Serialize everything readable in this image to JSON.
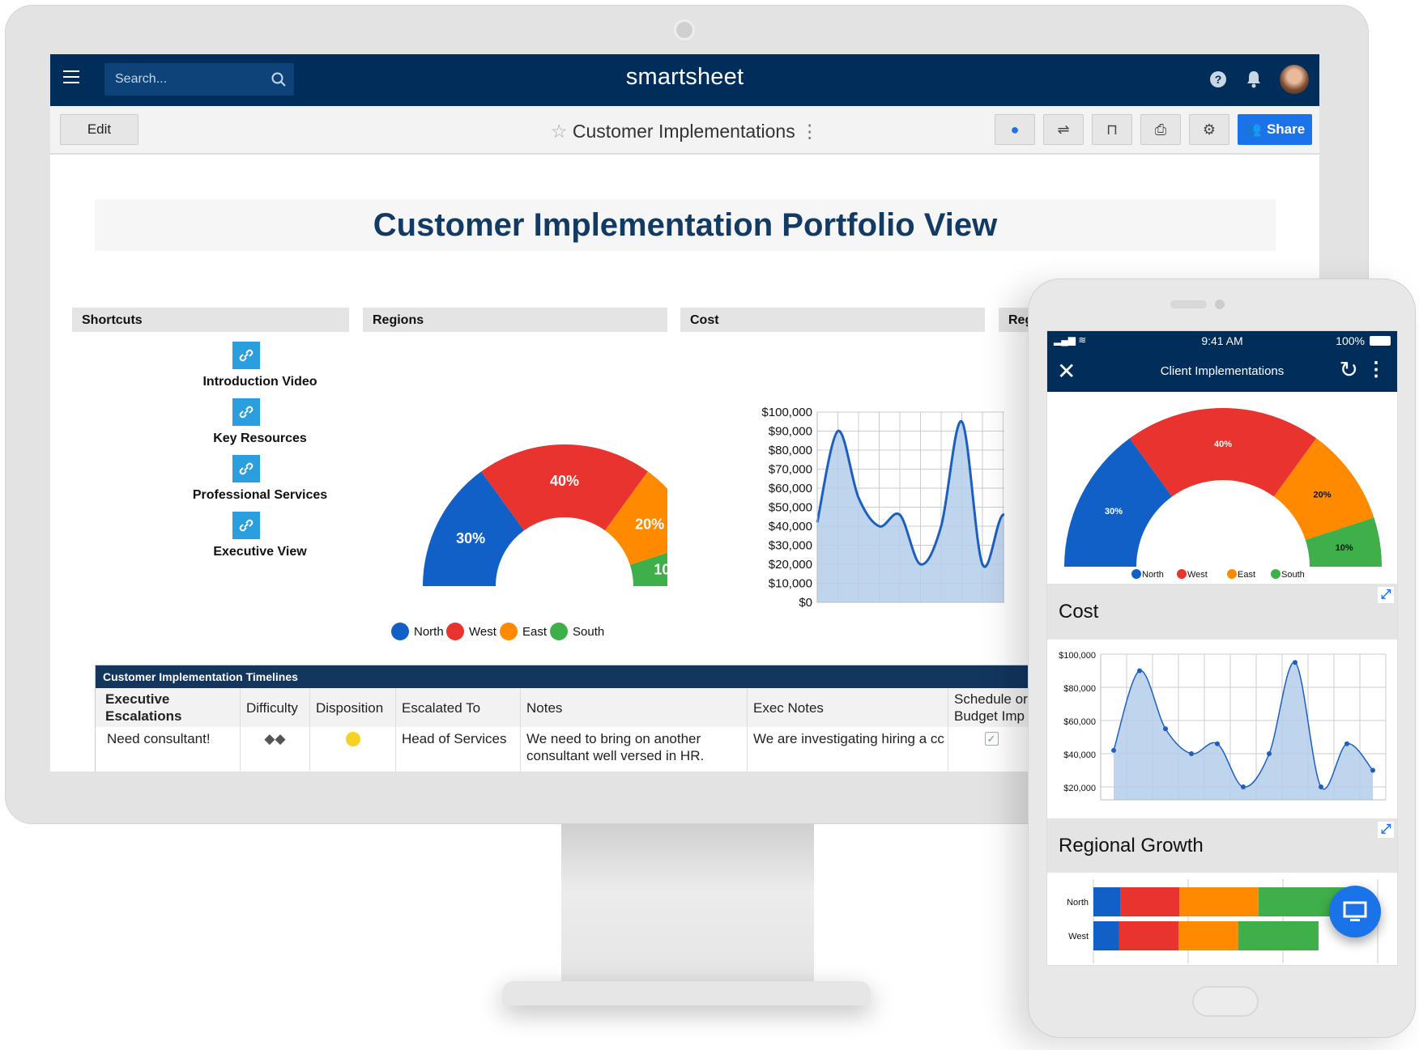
{
  "app": {
    "logo": "smartsheet",
    "search_placeholder": "Search...",
    "sheet_title": "Customer Implementations",
    "edit_label": "Edit",
    "share_label": "Share",
    "toolbar_icons": [
      "globe-icon",
      "activity-icon",
      "presentation-icon",
      "print-icon",
      "settings-user-icon"
    ]
  },
  "dashboard": {
    "title": "Customer Implementation Portfolio View",
    "widgets": {
      "shortcuts": "Shortcuts",
      "regions": "Regions",
      "cost": "Cost",
      "regional_growth_truncated": "Reg"
    },
    "shortcuts": [
      "Introduction Video",
      "Key Resources",
      "Professional Services",
      "Executive View"
    ]
  },
  "colors": {
    "navy": "#002d5a",
    "accent": "#1a73e8",
    "north": "#1060c8",
    "west": "#e8332e",
    "east": "#ff8a00",
    "south": "#3faf4a",
    "area": "#b4cdea",
    "line": "#1c5fc0"
  },
  "regions_chart": {
    "type": "pie",
    "style": "semi-donut",
    "categories": [
      "North",
      "West",
      "East",
      "South"
    ],
    "values": [
      30,
      40,
      20,
      10
    ],
    "labels": [
      "30%",
      "40%",
      "20%",
      "10%"
    ]
  },
  "cost_chart": {
    "type": "area",
    "title": "Cost",
    "ylim": [
      0,
      100000
    ],
    "yticks": [
      "$100,000",
      "$90,000",
      "$80,000",
      "$70,000",
      "$60,000",
      "$50,000",
      "$40,000",
      "$30,000",
      "$20,000",
      "$10,000",
      "$0"
    ],
    "values": [
      42000,
      90000,
      55000,
      40000,
      46000,
      20000,
      40000,
      95000,
      20000,
      46000,
      30000
    ]
  },
  "table": {
    "title": "Customer Implementation Timelines",
    "columns": [
      "Executive Escalations",
      "Difficulty",
      "Disposition",
      "Escalated To",
      "Notes",
      "Exec Notes",
      "Schedule or Budget Imp"
    ],
    "rows": [
      {
        "escalation": "Need consultant!",
        "difficulty": "◆◆",
        "disposition": "yellow",
        "escalated_to": "Head of Services",
        "notes": "We need to bring on another consultant well versed in HR.",
        "exec_notes": "We are investigating hiring a cc",
        "impact": true
      }
    ]
  },
  "phone": {
    "time": "9:41 AM",
    "battery": "100%",
    "title": "Client Implementations",
    "regions_labels": [
      "30%",
      "40%",
      "20%",
      "10%"
    ],
    "cost_title": "Cost",
    "cost_yticks": [
      "$100,000",
      "$80,000",
      "$60,000",
      "$40,000",
      "$20,000"
    ],
    "growth_title": "Regional Growth",
    "growth_chart": {
      "type": "bar",
      "stacked": true,
      "orientation": "horizontal",
      "categories": [
        "North",
        "West"
      ],
      "series": [
        {
          "name": "North",
          "values": [
            9.5,
            9
          ]
        },
        {
          "name": "West",
          "values": [
            20.5,
            20.7
          ]
        },
        {
          "name": "East",
          "values": [
            27.5,
            20.7
          ]
        },
        {
          "name": "South",
          "values": [
            33,
            28
          ]
        }
      ]
    }
  }
}
